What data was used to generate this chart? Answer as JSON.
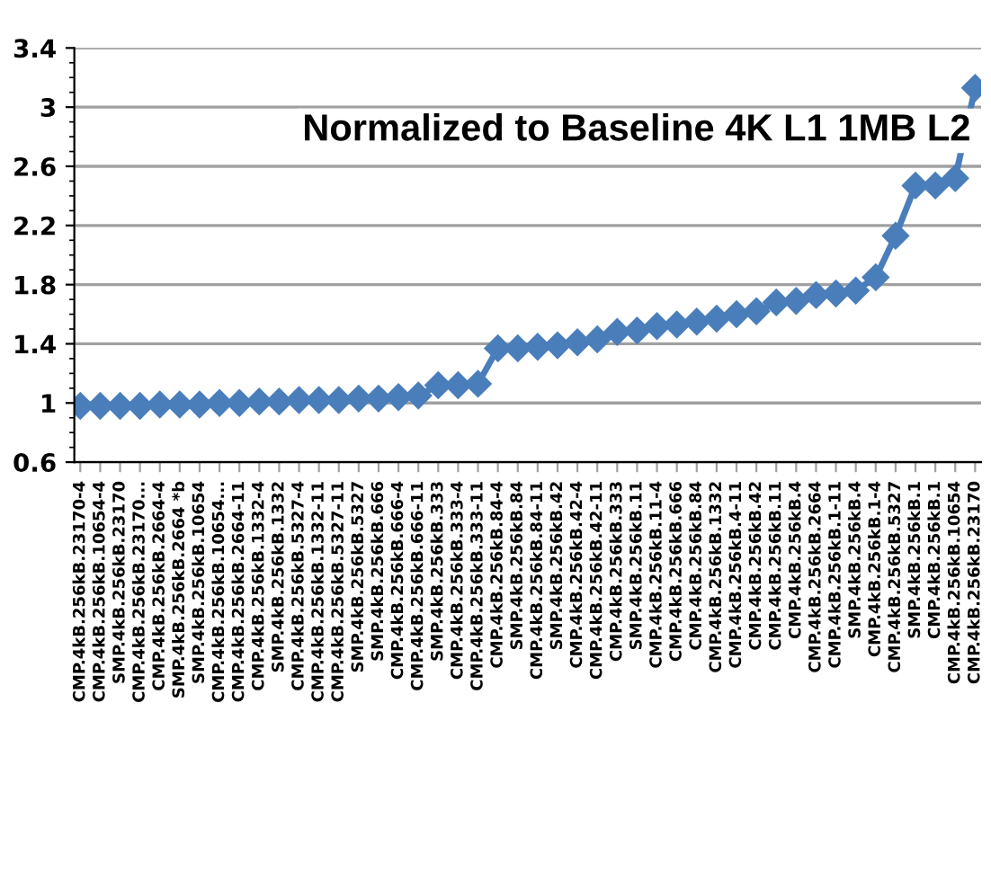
{
  "chart_data": {
    "type": "line",
    "title": "Normalized to Baseline 4K L1 1MB L2",
    "categories": [
      "CMP.4kB.256kB.23170-4",
      "CMP.4kB.256kB.10654-4",
      "SMP.4kB.256kB.23170",
      "CMP.4kB.256kB.23170...",
      "CMP.4kB.256kB.2664-4",
      "SMP.4kB.256kB.2664 *b",
      "SMP.4kB.256kB.10654",
      "CMP.4kB.256kB.10654...",
      "CMP.4kB.256kB.2664-11",
      "CMP.4kB.256kB.1332-4",
      "SMP.4kB.256kB.1332",
      "CMP.4kB.256kB.5327-4",
      "CMP.4kB.256kB.1332-11",
      "CMP.4kB.256kB.5327-11",
      "SMP.4kB.256kB.5327",
      "SMP.4kB.256kB.666",
      "CMP.4kB.256kB.666-4",
      "CMP.4kB.256kB.666-11",
      "SMP.4kB.256kB.333",
      "CMP.4kB.256kB.333-4",
      "CMP.4kB.256kB.333-11",
      "CMP.4kB.256kB.84-4",
      "SMP.4kB.256kB.84",
      "CMP.4kB.256kB.84-11",
      "SMP.4kB.256kB.42",
      "CMP.4kB.256kB.42-4",
      "CMP.4kB.256kB.42-11",
      "CMP.4kB.256kB.333",
      "SMP.4kB.256kB.11",
      "CMP.4kB.256kB.11-4",
      "CMP.4kB.256kB.666",
      "CMP.4kB.256kB.84",
      "CMP.4kB.256kB.1332",
      "CMP.4kB.256kB.4-11",
      "CMP.4kB.256kB.42",
      "CMP.4kB.256kB.11",
      "CMP.4kB.256kB.4",
      "CMP.4kB.256kB.2664",
      "CMP.4kB.256kB.1-11",
      "SMP.4kB.256kB.4",
      "CMP.4kB.256kB.1-4",
      "CMP.4kB.256kB.5327",
      "SMP.4kB.256kB.1",
      "CMP.4kB.256kB.1",
      "CMP.4kB.256kB.10654",
      "CMP.4kB.256kB.23170"
    ],
    "series": [
      {
        "color": "#4a7ebb",
        "values": [
          0.98,
          0.98,
          0.98,
          0.98,
          0.99,
          0.99,
          0.99,
          1.0,
          1.0,
          1.01,
          1.01,
          1.02,
          1.02,
          1.02,
          1.03,
          1.03,
          1.04,
          1.05,
          1.12,
          1.12,
          1.13,
          1.37,
          1.37,
          1.38,
          1.39,
          1.41,
          1.43,
          1.48,
          1.49,
          1.52,
          1.53,
          1.55,
          1.57,
          1.6,
          1.62,
          1.68,
          1.69,
          1.73,
          1.74,
          1.76,
          1.85,
          2.13,
          2.47,
          2.47,
          2.52,
          3.13
        ]
      }
    ],
    "ylim": [
      0.6,
      3.4
    ],
    "yticks": [
      0.6,
      1,
      1.4,
      1.8,
      2.2,
      2.6,
      3,
      3.4
    ],
    "grid": "y",
    "marker": "diamond",
    "line_style": "solid"
  }
}
